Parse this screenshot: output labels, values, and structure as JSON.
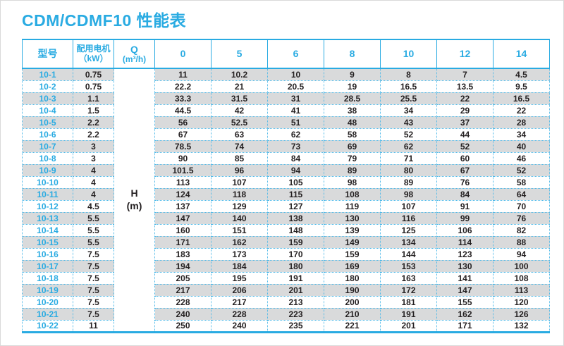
{
  "title": "CDM/CDMF10 性能表",
  "colors": {
    "accent": "#29abe2",
    "stripe": "#d9dadb",
    "text": "#231f20"
  },
  "table": {
    "header": {
      "model": "型号",
      "motor_line1": "配用电机",
      "motor_line2": "（kW）",
      "q_line1": "Q",
      "q_line2": "(m³/h)",
      "flow_columns": [
        "0",
        "5",
        "6",
        "8",
        "10",
        "12",
        "14"
      ]
    },
    "h_label_line1": "H",
    "h_label_line2": "(m)",
    "rows": [
      {
        "model": "10-1",
        "kw": "0.75",
        "values": [
          "11",
          "10.2",
          "10",
          "9",
          "8",
          "7",
          "4.5"
        ]
      },
      {
        "model": "10-2",
        "kw": "0.75",
        "values": [
          "22.2",
          "21",
          "20.5",
          "19",
          "16.5",
          "13.5",
          "9.5"
        ]
      },
      {
        "model": "10-3",
        "kw": "1.1",
        "values": [
          "33.3",
          "31.5",
          "31",
          "28.5",
          "25.5",
          "22",
          "16.5"
        ]
      },
      {
        "model": "10-4",
        "kw": "1.5",
        "values": [
          "44.5",
          "42",
          "41",
          "38",
          "34",
          "29",
          "22"
        ]
      },
      {
        "model": "10-5",
        "kw": "2.2",
        "values": [
          "56",
          "52.5",
          "51",
          "48",
          "43",
          "37",
          "28"
        ]
      },
      {
        "model": "10-6",
        "kw": "2.2",
        "values": [
          "67",
          "63",
          "62",
          "58",
          "52",
          "44",
          "34"
        ]
      },
      {
        "model": "10-7",
        "kw": "3",
        "values": [
          "78.5",
          "74",
          "73",
          "69",
          "62",
          "52",
          "40"
        ]
      },
      {
        "model": "10-8",
        "kw": "3",
        "values": [
          "90",
          "85",
          "84",
          "79",
          "71",
          "60",
          "46"
        ]
      },
      {
        "model": "10-9",
        "kw": "4",
        "values": [
          "101.5",
          "96",
          "94",
          "89",
          "80",
          "67",
          "52"
        ]
      },
      {
        "model": "10-10",
        "kw": "4",
        "values": [
          "113",
          "107",
          "105",
          "98",
          "89",
          "76",
          "58"
        ]
      },
      {
        "model": "10-11",
        "kw": "4",
        "values": [
          "124",
          "118",
          "115",
          "108",
          "98",
          "84",
          "64"
        ]
      },
      {
        "model": "10-12",
        "kw": "4.5",
        "values": [
          "137",
          "129",
          "127",
          "119",
          "107",
          "91",
          "70"
        ]
      },
      {
        "model": "10-13",
        "kw": "5.5",
        "values": [
          "147",
          "140",
          "138",
          "130",
          "116",
          "99",
          "76"
        ]
      },
      {
        "model": "10-14",
        "kw": "5.5",
        "values": [
          "160",
          "151",
          "148",
          "139",
          "125",
          "106",
          "82"
        ]
      },
      {
        "model": "10-15",
        "kw": "5.5",
        "values": [
          "171",
          "162",
          "159",
          "149",
          "134",
          "114",
          "88"
        ]
      },
      {
        "model": "10-16",
        "kw": "7.5",
        "values": [
          "183",
          "173",
          "170",
          "159",
          "144",
          "123",
          "94"
        ]
      },
      {
        "model": "10-17",
        "kw": "7.5",
        "values": [
          "194",
          "184",
          "180",
          "169",
          "153",
          "130",
          "100"
        ]
      },
      {
        "model": "10-18",
        "kw": "7.5",
        "values": [
          "205",
          "195",
          "191",
          "180",
          "163",
          "141",
          "108"
        ]
      },
      {
        "model": "10-19",
        "kw": "7.5",
        "values": [
          "217",
          "206",
          "201",
          "190",
          "172",
          "147",
          "113"
        ]
      },
      {
        "model": "10-20",
        "kw": "7.5",
        "values": [
          "228",
          "217",
          "213",
          "200",
          "181",
          "155",
          "120"
        ]
      },
      {
        "model": "10-21",
        "kw": "7.5",
        "values": [
          "240",
          "228",
          "223",
          "210",
          "191",
          "162",
          "126"
        ]
      },
      {
        "model": "10-22",
        "kw": "11",
        "values": [
          "250",
          "240",
          "235",
          "221",
          "201",
          "171",
          "132"
        ]
      }
    ]
  }
}
